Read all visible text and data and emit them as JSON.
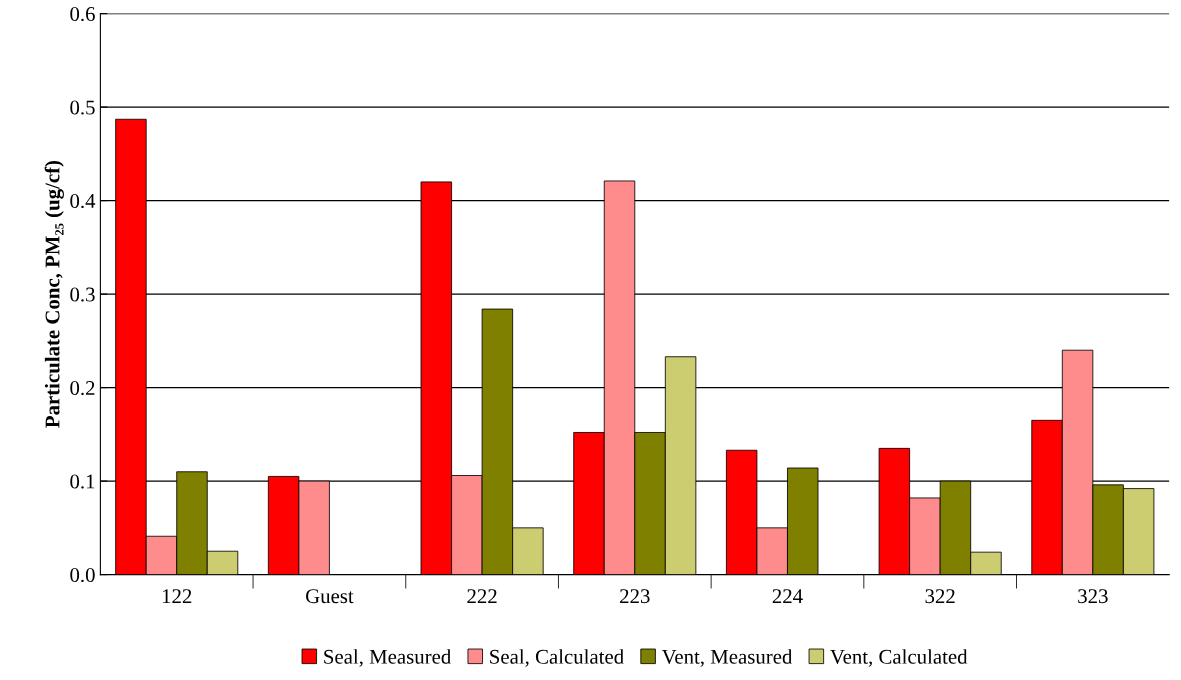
{
  "chart_data": {
    "type": "bar",
    "ylabel": "Particulate Conc, PM₂₅ (ug/cf)",
    "categories": [
      "122",
      "Guest",
      "222",
      "223",
      "224",
      "322",
      "323"
    ],
    "series": [
      {
        "name": "Seal, Measured",
        "color": "#ff0000",
        "values": [
          0.487,
          0.105,
          0.42,
          0.152,
          0.133,
          0.135,
          0.165
        ]
      },
      {
        "name": "Seal, Calculated",
        "color": "#ff8c8c",
        "values": [
          0.041,
          0.1,
          0.106,
          0.421,
          0.05,
          0.082,
          0.24
        ]
      },
      {
        "name": "Vent, Measured",
        "color": "#808000",
        "values": [
          0.11,
          null,
          0.284,
          0.152,
          0.114,
          0.1,
          0.096
        ]
      },
      {
        "name": "Vent, Calculated",
        "color": "#cccc70",
        "values": [
          0.025,
          null,
          0.05,
          0.233,
          null,
          0.024,
          0.092
        ]
      }
    ],
    "ylim": [
      0,
      0.6
    ],
    "yticks": [
      {
        "value": 0,
        "label": "0.0"
      },
      0.1,
      0.2,
      0.3,
      0.4,
      0.5,
      0.6
    ],
    "grid": "y",
    "legend": "bottom"
  }
}
